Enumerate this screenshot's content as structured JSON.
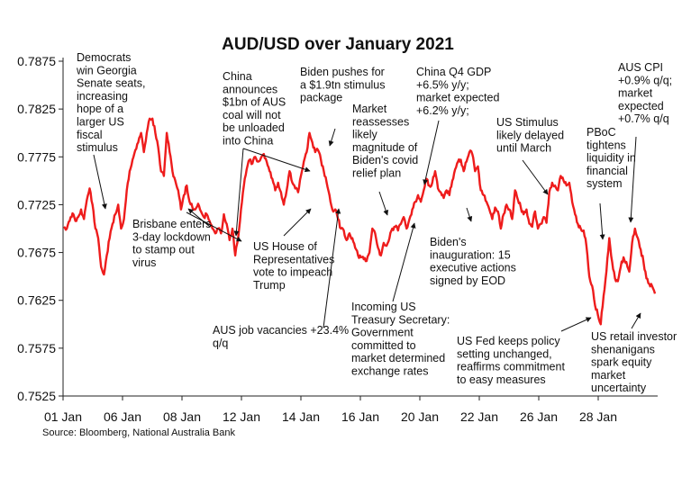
{
  "chart_data": {
    "type": "line",
    "title": "AUD/USD over January 2021",
    "source": "Source: Bloomberg, National Australia Bank",
    "ylim": [
      0.7525,
      0.7875
    ],
    "y_ticks": [
      "0.7875",
      "0.7825",
      "0.7775",
      "0.7725",
      "0.7675",
      "0.7625",
      "0.7575",
      "0.7525"
    ],
    "x_ticks": [
      "01 Jan",
      "06 Jan",
      "08 Jan",
      "12 Jan",
      "14 Jan",
      "16 Jan",
      "20 Jan",
      "22 Jan",
      "26 Jan",
      "28 Jan"
    ],
    "grid": false,
    "series_color": "#ee1c1c",
    "series": [
      {
        "values": [
          0.7702,
          0.77,
          0.7708,
          0.7716,
          0.7708,
          0.7712,
          0.772,
          0.771,
          0.773,
          0.7742,
          0.7725,
          0.77,
          0.769,
          0.766,
          0.7652,
          0.7672,
          0.769,
          0.7705,
          0.7715,
          0.7725,
          0.77,
          0.771,
          0.774,
          0.776,
          0.7772,
          0.7782,
          0.779,
          0.78,
          0.778,
          0.78,
          0.7815,
          0.7815,
          0.78,
          0.7785,
          0.776,
          0.7755,
          0.78,
          0.778,
          0.776,
          0.775,
          0.774,
          0.772,
          0.7735,
          0.7745,
          0.7728,
          0.7722,
          0.772,
          0.7726,
          0.7718,
          0.7712,
          0.7715,
          0.7708,
          0.77,
          0.7695,
          0.77,
          0.7695,
          0.7715,
          0.7705,
          0.7688,
          0.77,
          0.7672,
          0.769,
          0.772,
          0.7745,
          0.7762,
          0.7772,
          0.7768,
          0.7775,
          0.777,
          0.7774,
          0.7778,
          0.777,
          0.776,
          0.7752,
          0.774,
          0.7748,
          0.7738,
          0.7725,
          0.774,
          0.776,
          0.7748,
          0.7742,
          0.7738,
          0.7755,
          0.777,
          0.778,
          0.78,
          0.779,
          0.778,
          0.7782,
          0.7772,
          0.776,
          0.7748,
          0.7735,
          0.772,
          0.772,
          0.771,
          0.77,
          0.7698,
          0.7688,
          0.7695,
          0.769,
          0.768,
          0.7672,
          0.767,
          0.7668,
          0.7666,
          0.7675,
          0.77,
          0.7695,
          0.768,
          0.7672,
          0.7685,
          0.7682,
          0.769,
          0.77,
          0.7702,
          0.7698,
          0.7705,
          0.7712,
          0.77,
          0.771,
          0.772,
          0.7728,
          0.7735,
          0.7728,
          0.774,
          0.7752,
          0.7745,
          0.7748,
          0.776,
          0.7742,
          0.7738,
          0.7732,
          0.774,
          0.7735,
          0.775,
          0.7762,
          0.777,
          0.7772,
          0.776,
          0.777,
          0.778,
          0.7778,
          0.776,
          0.7765,
          0.774,
          0.7735,
          0.7728,
          0.772,
          0.771,
          0.7722,
          0.7718,
          0.77,
          0.7715,
          0.7725,
          0.772,
          0.771,
          0.774,
          0.773,
          0.7722,
          0.7715,
          0.772,
          0.7705,
          0.7702,
          0.7718,
          0.77,
          0.7705,
          0.7712,
          0.7706,
          0.7738,
          0.7748,
          0.7745,
          0.774,
          0.7755,
          0.775,
          0.7745,
          0.7748,
          0.7728,
          0.7715,
          0.7705,
          0.77,
          0.7698,
          0.7682,
          0.765,
          0.764,
          0.762,
          0.761,
          0.76,
          0.763,
          0.7655,
          0.769,
          0.7665,
          0.7648,
          0.7645,
          0.766,
          0.767,
          0.7665,
          0.7655,
          0.7685,
          0.77,
          0.769,
          0.7678,
          0.7665,
          0.7648,
          0.7642,
          0.764,
          0.7632
        ]
      }
    ]
  },
  "annotations": [
    {
      "id": "georgia",
      "lines": [
        "Democrats",
        "win Georgia",
        "Senate seats,",
        "increasing",
        "hope of a",
        "larger US",
        "fiscal",
        "stimulus"
      ]
    },
    {
      "id": "brisbane",
      "lines": [
        "Brisbane enters",
        "3-day lockdown",
        "to stamp out",
        "virus"
      ]
    },
    {
      "id": "china-coal",
      "lines": [
        "China",
        "announces",
        "$1bn of AUS",
        "coal will not",
        "be unloaded",
        "into China"
      ]
    },
    {
      "id": "impeach",
      "lines": [
        "US House of",
        "Representatives",
        "vote to impeach",
        "Trump"
      ]
    },
    {
      "id": "job-vacancies",
      "lines": [
        "AUS job vacancies +23.4%",
        "q/q"
      ]
    },
    {
      "id": "biden-stimulus",
      "lines": [
        "Biden pushes for",
        "a $1.9tn stimulus",
        "package"
      ]
    },
    {
      "id": "reassess",
      "lines": [
        "Market",
        "reassesses",
        "likely",
        "magnitude of",
        "Biden's covid",
        "relief plan"
      ]
    },
    {
      "id": "yellen",
      "lines": [
        "Incoming US",
        "Treasury Secretary:",
        "Government",
        "committed to",
        "market determined",
        "exchange rates"
      ]
    },
    {
      "id": "china-gdp",
      "lines": [
        "China Q4 GDP",
        "+6.5% y/y;",
        "market expected",
        "+6.2% y/y;"
      ]
    },
    {
      "id": "inauguration",
      "lines": [
        "Biden's",
        "inauguration: 15",
        "executive actions",
        "signed by EOD"
      ]
    },
    {
      "id": "us-stimulus-delay",
      "lines": [
        "US Stimulus",
        "likely delayed",
        "until March"
      ]
    },
    {
      "id": "fed",
      "lines": [
        "US Fed keeps policy",
        "setting unchanged,",
        "reaffirms commitment",
        "to easy measures"
      ]
    },
    {
      "id": "pboc",
      "lines": [
        "PBoC",
        "tightens",
        "liquidity in",
        "financial",
        "system"
      ]
    },
    {
      "id": "aus-cpi",
      "lines": [
        "AUS CPI",
        "+0.9% q/q;",
        "market",
        "expected",
        "+0.7% q/q"
      ]
    },
    {
      "id": "retail",
      "lines": [
        "US retail investor",
        "shenanigans",
        "spark equity",
        "market",
        "uncertainty"
      ]
    }
  ]
}
